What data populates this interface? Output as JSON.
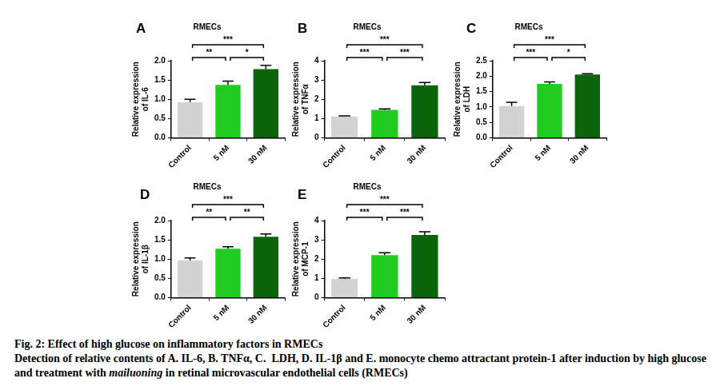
{
  "chart_data": [
    {
      "type": "bar",
      "panel": "A",
      "title": "RMECs",
      "categories": [
        "Control",
        "5 nM",
        "30 nM"
      ],
      "values": [
        0.92,
        1.37,
        1.78
      ],
      "errors": [
        0.08,
        0.1,
        0.1
      ],
      "colors": [
        "#d3d3d3",
        "#1fcc1f",
        "#0a640a"
      ],
      "ylabel": [
        "Relative expression",
        "of IL-6"
      ],
      "ylim": [
        0,
        2
      ],
      "yticks": [
        {
          "value": 0,
          "label": "0.0"
        },
        0.5,
        {
          "value": 1,
          "label": "1.0"
        },
        1.5,
        {
          "value": 2,
          "label": "2.0"
        }
      ],
      "grid": false,
      "annotations": [
        {
          "from": "Control",
          "to": "5 nM",
          "text": "**"
        },
        {
          "from": "5 nM",
          "to": "30 nM",
          "text": "*"
        },
        {
          "from": "Control",
          "to": "30 nM",
          "text": "***"
        }
      ]
    },
    {
      "type": "bar",
      "panel": "B",
      "title": "RMECs",
      "categories": [
        "Control",
        "5 nM",
        "30 nM"
      ],
      "values": [
        1.1,
        1.45,
        2.72
      ],
      "errors": [
        0.04,
        0.05,
        0.15
      ],
      "colors": [
        "#d3d3d3",
        "#1fcc1f",
        "#0a640a"
      ],
      "ylabel": [
        "Relative expression",
        "of TNFα"
      ],
      "ylim": [
        0,
        4
      ],
      "yticks": [
        0,
        1,
        2,
        3,
        4
      ],
      "grid": false,
      "annotations": [
        {
          "from": "Control",
          "to": "5 nM",
          "text": "***"
        },
        {
          "from": "5 nM",
          "to": "30 nM",
          "text": "***"
        },
        {
          "from": "Control",
          "to": "30 nM",
          "text": "***"
        }
      ]
    },
    {
      "type": "bar",
      "panel": "C",
      "title": "RMECs",
      "categories": [
        "Control",
        "5 nM",
        "30 nM"
      ],
      "values": [
        1.03,
        1.75,
        2.05
      ],
      "errors": [
        0.12,
        0.06,
        0.03
      ],
      "colors": [
        "#d3d3d3",
        "#1fcc1f",
        "#0a640a"
      ],
      "ylabel": [
        "Relative expression",
        "of LDH"
      ],
      "ylim": [
        0,
        2.5
      ],
      "yticks": [
        {
          "value": 0,
          "label": "0.0"
        },
        0.5,
        {
          "value": 1,
          "label": "1.0"
        },
        1.5,
        {
          "value": 2,
          "label": "2.0"
        },
        2.5
      ],
      "grid": false,
      "annotations": [
        {
          "from": "Control",
          "to": "5 nM",
          "text": "***"
        },
        {
          "from": "5 nM",
          "to": "30 nM",
          "text": "*"
        },
        {
          "from": "Control",
          "to": "30 nM",
          "text": "***"
        }
      ]
    },
    {
      "type": "bar",
      "panel": "D",
      "title": "RMECs",
      "categories": [
        "Control",
        "5 nM",
        "30 nM"
      ],
      "values": [
        0.97,
        1.27,
        1.58
      ],
      "errors": [
        0.06,
        0.05,
        0.07
      ],
      "colors": [
        "#d3d3d3",
        "#1fcc1f",
        "#0a640a"
      ],
      "ylabel": [
        "Relative expression",
        "of IL-1β"
      ],
      "ylim": [
        0,
        2
      ],
      "yticks": [
        {
          "value": 0,
          "label": "0.0"
        },
        0.5,
        {
          "value": 1,
          "label": "1.0"
        },
        1.5,
        {
          "value": 2,
          "label": "2.0"
        }
      ],
      "grid": false,
      "annotations": [
        {
          "from": "Control",
          "to": "5 nM",
          "text": "**"
        },
        {
          "from": "5 nM",
          "to": "30 nM",
          "text": "**"
        },
        {
          "from": "Control",
          "to": "30 nM",
          "text": "***"
        }
      ]
    },
    {
      "type": "bar",
      "panel": "E",
      "title": "RMECs",
      "categories": [
        "Control",
        "5 nM",
        "30 nM"
      ],
      "values": [
        0.97,
        2.2,
        3.25
      ],
      "errors": [
        0.05,
        0.13,
        0.17
      ],
      "colors": [
        "#d3d3d3",
        "#1fcc1f",
        "#0a640a"
      ],
      "ylabel": [
        "Relative expression",
        "of MCP-1"
      ],
      "ylim": [
        0,
        4
      ],
      "yticks": [
        0,
        1,
        2,
        3,
        4
      ],
      "grid": false,
      "annotations": [
        {
          "from": "Control",
          "to": "5 nM",
          "text": "***"
        },
        {
          "from": "5 nM",
          "to": "30 nM",
          "text": "***"
        },
        {
          "from": "Control",
          "to": "30 nM",
          "text": "***"
        }
      ]
    }
  ],
  "caption": {
    "title": "Fig. 2: Effect of high glucose on inflammatory factors in RMECs",
    "body": [
      {
        "text": "Detection of relative contents of A. IL-6, B. TNFα, C.  LDH, D. IL-1β and E. monocyte chemo attractant protein-1 after induction by high glucose and treatment with "
      },
      {
        "text": "mailuoning",
        "style": "italic"
      },
      {
        "text": " in retinal microvascular endothelial cells (RMECs)"
      }
    ]
  }
}
